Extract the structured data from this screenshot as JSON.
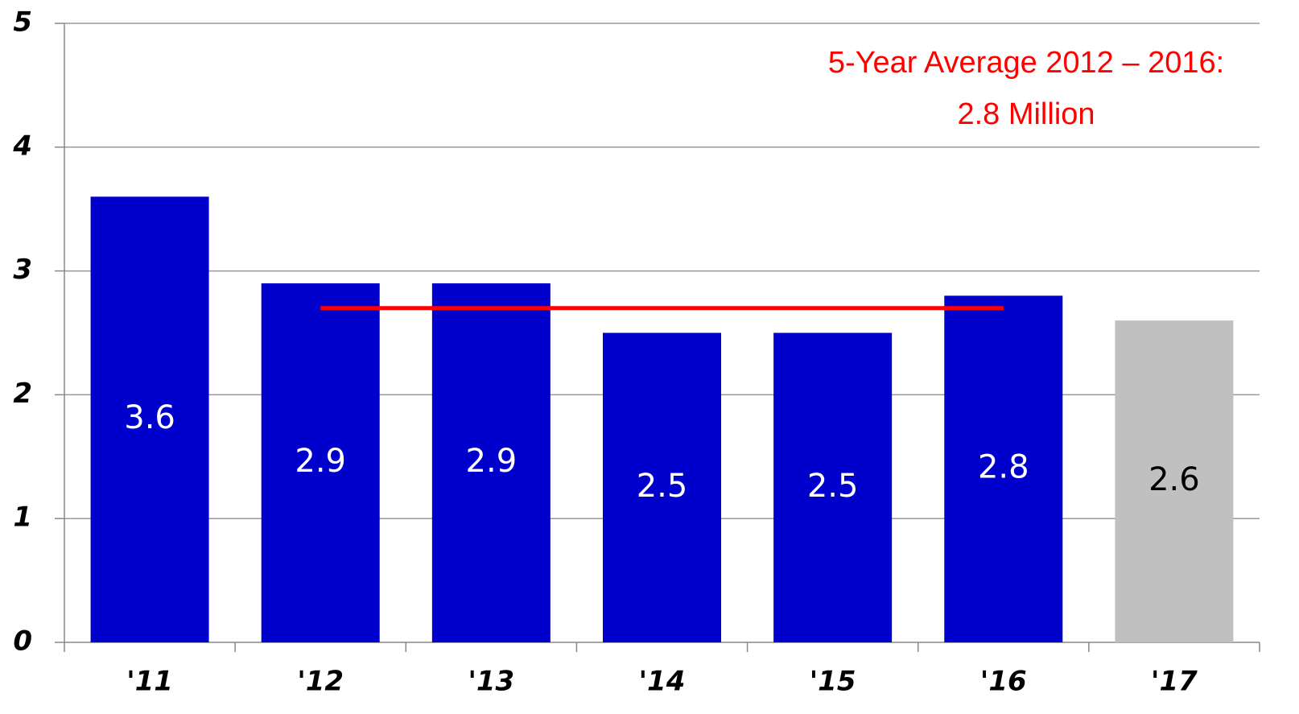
{
  "chart_data": {
    "type": "bar",
    "categories": [
      "'11",
      "'12",
      "'13",
      "'14",
      "'15",
      "'16",
      "'17"
    ],
    "values": [
      3.6,
      2.9,
      2.9,
      2.5,
      2.5,
      2.8,
      2.6
    ],
    "colors": [
      "#0000cc",
      "#0000cc",
      "#0000cc",
      "#0000cc",
      "#0000cc",
      "#0000cc",
      "#c0c0c0"
    ],
    "label_colors": [
      "#ffffff",
      "#ffffff",
      "#ffffff",
      "#ffffff",
      "#ffffff",
      "#ffffff",
      "#000000"
    ],
    "ylim": [
      0,
      5
    ],
    "yticks": [
      0,
      1,
      2,
      3,
      4,
      5
    ],
    "grid": true,
    "average_line": {
      "value": 2.7,
      "from": "'12",
      "to": "'16",
      "color": "#ff0000"
    },
    "annotation": {
      "lines": [
        "5-Year Average 2012 – 2016:",
        "2.8 Million"
      ],
      "color": "#ff0000"
    }
  }
}
